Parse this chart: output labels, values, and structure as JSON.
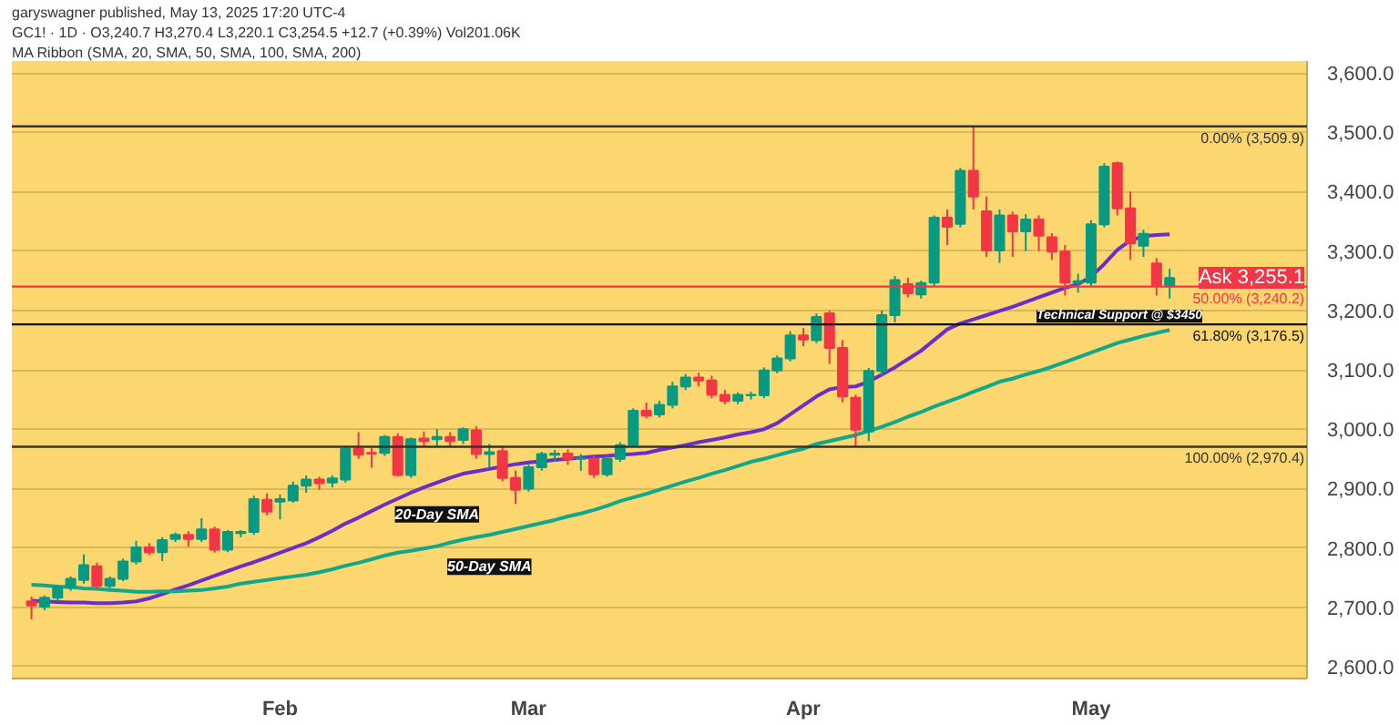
{
  "chart_data": {
    "type": "candlestick",
    "categories": [
      null,
      null,
      null,
      null,
      null,
      null,
      null,
      null,
      null,
      null,
      null,
      null,
      null,
      null,
      null,
      null,
      null,
      null,
      null,
      "Feb",
      null,
      null,
      null,
      null,
      null,
      null,
      null,
      null,
      null,
      null,
      null,
      null,
      null,
      null,
      null,
      null,
      null,
      null,
      "Mar",
      null,
      null,
      null,
      null,
      null,
      null,
      null,
      null,
      null,
      null,
      null,
      null,
      null,
      null,
      null,
      null,
      null,
      null,
      null,
      null,
      "Apr",
      null,
      null,
      null,
      null,
      null,
      null,
      null,
      null,
      null,
      null,
      null,
      null,
      null,
      null,
      null,
      null,
      null,
      null,
      null,
      null,
      null,
      "May",
      null,
      null,
      null,
      null,
      null,
      null
    ],
    "ohlc": [
      [
        2710,
        2718,
        2680,
        2703
      ],
      [
        2701,
        2720,
        2695,
        2716
      ],
      [
        2716,
        2738,
        2710,
        2735
      ],
      [
        2733,
        2752,
        2728,
        2748
      ],
      [
        2746,
        2789,
        2740,
        2771
      ],
      [
        2769,
        2775,
        2730,
        2736
      ],
      [
        2736,
        2752,
        2731,
        2748
      ],
      [
        2748,
        2782,
        2744,
        2777
      ],
      [
        2777,
        2812,
        2772,
        2801
      ],
      [
        2801,
        2808,
        2788,
        2793
      ],
      [
        2793,
        2818,
        2778,
        2813
      ],
      [
        2815,
        2826,
        2810,
        2822
      ],
      [
        2822,
        2828,
        2802,
        2815
      ],
      [
        2815,
        2850,
        2810,
        2831
      ],
      [
        2831,
        2836,
        2792,
        2797
      ],
      [
        2797,
        2830,
        2793,
        2827
      ],
      [
        2825,
        2830,
        2818,
        2827
      ],
      [
        2827,
        2888,
        2822,
        2882
      ],
      [
        2881,
        2892,
        2855,
        2861
      ],
      [
        2878,
        2890,
        2848,
        2882
      ],
      [
        2880,
        2912,
        2876,
        2905
      ],
      [
        2905,
        2922,
        2893,
        2915
      ],
      [
        2915,
        2920,
        2898,
        2909
      ],
      [
        2910,
        2922,
        2902,
        2917
      ],
      [
        2915,
        2972,
        2910,
        2967
      ],
      [
        2967,
        2995,
        2950,
        2957
      ],
      [
        2960,
        2968,
        2935,
        2959
      ],
      [
        2960,
        2990,
        2955,
        2987
      ],
      [
        2987,
        2993,
        2920,
        2923
      ],
      [
        2923,
        2986,
        2918,
        2983
      ],
      [
        2984,
        2996,
        2970,
        2980
      ],
      [
        2983,
        3000,
        2972,
        2987
      ],
      [
        2987,
        2995,
        2970,
        2980
      ],
      [
        2982,
        3003,
        2975,
        3000
      ],
      [
        2998,
        3005,
        2950,
        2958
      ],
      [
        2958,
        2975,
        2935,
        2961
      ],
      [
        2963,
        2970,
        2912,
        2918
      ],
      [
        2918,
        2930,
        2874,
        2898
      ],
      [
        2900,
        2940,
        2895,
        2936
      ],
      [
        2936,
        2962,
        2930,
        2958
      ],
      [
        2957,
        2965,
        2945,
        2959
      ],
      [
        2959,
        2966,
        2940,
        2950
      ],
      [
        2950,
        2958,
        2930,
        2951
      ],
      [
        2950,
        2955,
        2918,
        2924
      ],
      [
        2924,
        2955,
        2920,
        2950
      ],
      [
        2950,
        2978,
        2945,
        2973
      ],
      [
        2973,
        3035,
        2970,
        3031
      ],
      [
        3031,
        3045,
        3018,
        3023
      ],
      [
        3025,
        3048,
        3020,
        3041
      ],
      [
        3041,
        3080,
        3035,
        3072
      ],
      [
        3072,
        3093,
        3066,
        3087
      ],
      [
        3087,
        3095,
        3072,
        3082
      ],
      [
        3082,
        3090,
        3052,
        3058
      ],
      [
        3058,
        3066,
        3042,
        3048
      ],
      [
        3048,
        3062,
        3042,
        3058
      ],
      [
        3057,
        3063,
        3050,
        3058
      ],
      [
        3057,
        3104,
        3052,
        3099
      ],
      [
        3099,
        3124,
        3094,
        3119
      ],
      [
        3119,
        3165,
        3114,
        3158
      ],
      [
        3158,
        3170,
        3140,
        3151
      ],
      [
        3150,
        3195,
        3145,
        3189
      ],
      [
        3195,
        3200,
        3110,
        3137
      ],
      [
        3137,
        3150,
        3045,
        3055
      ],
      [
        3053,
        3058,
        2970.4,
        2999
      ],
      [
        2996,
        3103,
        2980,
        3098
      ],
      [
        3098,
        3200,
        3090,
        3192
      ],
      [
        3192,
        3258,
        3180,
        3251
      ],
      [
        3244,
        3255,
        3222,
        3229
      ],
      [
        3227,
        3250,
        3220,
        3246
      ],
      [
        3247,
        3360,
        3240,
        3356
      ],
      [
        3356,
        3370,
        3310,
        3341
      ],
      [
        3346,
        3440,
        3340,
        3435
      ],
      [
        3435,
        3509.9,
        3370,
        3392
      ],
      [
        3367,
        3392,
        3290,
        3301
      ],
      [
        3301,
        3370,
        3280,
        3360
      ],
      [
        3360,
        3366,
        3290,
        3333
      ],
      [
        3333,
        3362,
        3300,
        3353
      ],
      [
        3353,
        3360,
        3300,
        3326
      ],
      [
        3323,
        3330,
        3285,
        3299
      ],
      [
        3299,
        3310,
        3225,
        3247
      ],
      [
        3247,
        3262,
        3230,
        3249
      ],
      [
        3247,
        3352,
        3240,
        3345
      ],
      [
        3345,
        3448,
        3340,
        3442
      ],
      [
        3448,
        3451,
        3360,
        3372
      ],
      [
        3372,
        3400,
        3285,
        3313
      ],
      [
        3309,
        3336,
        3290,
        3329
      ],
      [
        3279,
        3288,
        3225,
        3241.8
      ],
      [
        3240.7,
        3270.4,
        3220.1,
        3254.5
      ]
    ],
    "colors": [
      "#f23645",
      "#089981",
      "#089981",
      "#089981",
      "#089981",
      "#f23645",
      "#089981",
      "#089981",
      "#089981",
      "#f23645",
      "#089981",
      "#089981",
      "#f23645",
      "#089981",
      "#f23645",
      "#089981",
      "#089981",
      "#089981",
      "#f23645",
      "#089981",
      "#089981",
      "#089981",
      "#f23645",
      "#089981",
      "#089981",
      "#f23645",
      "#f23645",
      "#089981",
      "#f23645",
      "#089981",
      "#f23645",
      "#089981",
      "#f23645",
      "#089981",
      "#f23645",
      "#089981",
      "#f23645",
      "#f23645",
      "#089981",
      "#089981",
      "#089981",
      "#f23645",
      "#089981",
      "#f23645",
      "#089981",
      "#089981",
      "#089981",
      "#f23645",
      "#089981",
      "#089981",
      "#089981",
      "#f23645",
      "#f23645",
      "#f23645",
      "#089981",
      "#089981",
      "#089981",
      "#089981",
      "#089981",
      "#f23645",
      "#089981",
      "#f23645",
      "#f23645",
      "#f23645",
      "#089981",
      "#089981",
      "#089981",
      "#f23645",
      "#089981",
      "#089981",
      "#f23645",
      "#089981",
      "#f23645",
      "#f23645",
      "#089981",
      "#f23645",
      "#089981",
      "#f23645",
      "#f23645",
      "#f23645",
      "#089981",
      "#089981",
      "#089981",
      "#f23645",
      "#f23645",
      "#089981",
      "#f23645",
      "#089981"
    ],
    "series": [
      {
        "name": "20-Day SMA",
        "type": "line",
        "color": "#6a2fc8",
        "values": [
          2711,
          2710,
          2709,
          2708,
          2708,
          2707,
          2707,
          2708,
          2710,
          2715,
          2722,
          2730,
          2737,
          2745,
          2753,
          2761,
          2769,
          2776,
          2784,
          2792,
          2800,
          2808,
          2818,
          2829,
          2841,
          2851,
          2862,
          2873,
          2883,
          2893,
          2902,
          2910,
          2918,
          2925,
          2929,
          2933,
          2937,
          2941,
          2944,
          2946,
          2948,
          2950,
          2952,
          2954,
          2955,
          2957,
          2958,
          2960,
          2965,
          2969,
          2973,
          2978,
          2982,
          2986,
          2991,
          2995,
          3000,
          3010,
          3025,
          3040,
          3055,
          3067,
          3071,
          3072,
          3080,
          3092,
          3104,
          3118,
          3132,
          3150,
          3168,
          3178,
          3185,
          3192,
          3199,
          3206,
          3214,
          3222,
          3230,
          3238,
          3244,
          3257,
          3278,
          3302,
          3318,
          3325,
          3327,
          3328
        ]
      },
      {
        "name": "50-Day SMA",
        "type": "line",
        "color": "#0fa88c",
        "values": [
          2738,
          2737,
          2735,
          2734,
          2732,
          2731,
          2729,
          2728,
          2726,
          2726,
          2727,
          2727,
          2728,
          2729,
          2732,
          2735,
          2740,
          2743,
          2746,
          2749,
          2752,
          2755,
          2759,
          2764,
          2770,
          2775,
          2781,
          2787,
          2792,
          2795,
          2799,
          2803,
          2809,
          2814,
          2818,
          2822,
          2827,
          2832,
          2837,
          2842,
          2847,
          2853,
          2858,
          2864,
          2871,
          2879,
          2885,
          2891,
          2898,
          2905,
          2912,
          2918,
          2925,
          2931,
          2938,
          2945,
          2950,
          2956,
          2962,
          2967,
          2975,
          2980,
          2985,
          2990,
          2997,
          3004,
          3012,
          3021,
          3029,
          3038,
          3046,
          3054,
          3063,
          3071,
          3080,
          3085,
          3092,
          3098,
          3105,
          3113,
          3121,
          3129,
          3137,
          3145,
          3151,
          3157,
          3162,
          3167
        ]
      }
    ],
    "ylim": [
      2580,
      3620
    ],
    "yticks": [
      {
        "value": 2600,
        "label": "2,600.0"
      },
      {
        "value": 2700,
        "label": "2,700.0"
      },
      {
        "value": 2800,
        "label": "2,800.0"
      },
      {
        "value": 2900,
        "label": "2,900.0"
      },
      {
        "value": 3000,
        "label": "3,000.0"
      },
      {
        "value": 3100,
        "label": "3,100.0"
      },
      {
        "value": 3200,
        "label": "3,200.0"
      },
      {
        "value": 3300,
        "label": "3,300.0"
      },
      {
        "value": 3400,
        "label": "3,400.0"
      },
      {
        "value": 3500,
        "label": "3,500.0"
      },
      {
        "value": 3600,
        "label": "3,600.0"
      }
    ],
    "ref_lines": [
      {
        "axis": "y",
        "value": 3509.9,
        "label": "0.00% (3,509.9)",
        "color": "#333333"
      },
      {
        "axis": "y",
        "value": 3240.2,
        "label": "50.00% (3,240.2)",
        "color": "#f23645"
      },
      {
        "axis": "y",
        "value": 3176.5,
        "label": "61.80% (3,176.5)",
        "color": "#111111"
      },
      {
        "axis": "y",
        "value": 2970.4,
        "label": "100.00% (2,970.4)",
        "color": "#333333"
      }
    ],
    "annotations": [
      "garyswagner published, May 13, 2025 17:20 UTC-4",
      "GC1! · 1D · O3,240.7 H3,270.4 L3,220.1 C3,254.5 +12.7 (+0.39%) Vol201.06K",
      "MA Ribbon (SMA, 20, SMA, 50, SMA, 100, SMA, 200)",
      {
        "text": "Technical Support @ $3450",
        "y": 3190
      },
      {
        "text": "Ask 3,255.1",
        "y": 3255.1
      }
    ],
    "grid": "y"
  }
}
